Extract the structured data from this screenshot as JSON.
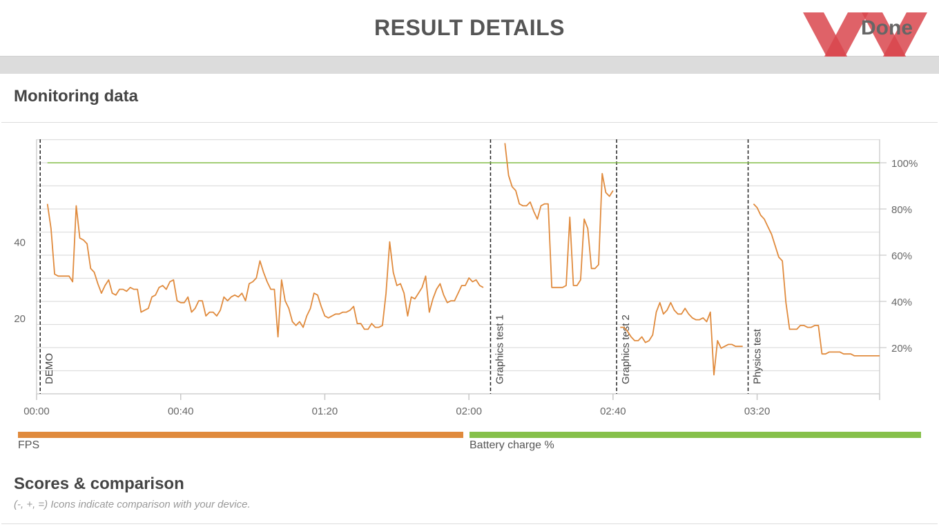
{
  "header": {
    "title": "RESULT DETAILS",
    "done_label": "Done"
  },
  "monitoring": {
    "title": "Monitoring data"
  },
  "legend": [
    {
      "label": "FPS",
      "color": "#e08a3c"
    },
    {
      "label": "Battery charge %",
      "color": "#86c04a"
    }
  ],
  "scores": {
    "title": "Scores & comparison",
    "note": "(-, +, =) Icons indicate comparison with your device."
  },
  "chart_data": {
    "type": "line",
    "x_ticks": [
      "00:00",
      "00:40",
      "01:20",
      "02:00",
      "02:40",
      "03:20"
    ],
    "x_tick_values": [
      0,
      40,
      80,
      120,
      160,
      200
    ],
    "xlim": [
      0,
      234
    ],
    "y_left_ticks": [
      "20",
      "40"
    ],
    "y_left_tick_values": [
      20,
      40
    ],
    "ylim_left": [
      0,
      67
    ],
    "y_right_ticks": [
      "20%",
      "40%",
      "60%",
      "80%",
      "100%"
    ],
    "y_right_tick_values": [
      20,
      40,
      60,
      80,
      100
    ],
    "ylim_right": [
      0,
      100
    ],
    "grid": true,
    "markers": [
      {
        "label": "DEMO",
        "x": 1
      },
      {
        "label": "Graphics test 1",
        "x": 126
      },
      {
        "label": "Graphics test 2",
        "x": 161
      },
      {
        "label": "Physics test",
        "x": 197.5
      }
    ],
    "series": [
      {
        "name": "Battery charge %",
        "axis": "right",
        "color": "#86c04a",
        "x": [
          3,
          234
        ],
        "y": [
          100,
          100
        ]
      },
      {
        "name": "FPS",
        "axis": "left",
        "color": "#e08a3c",
        "segments": [
          {
            "x": [
              3,
              4,
              5,
              6,
              7,
              8,
              9,
              10,
              11,
              12,
              13,
              14,
              15,
              16,
              17,
              18,
              19,
              20,
              21,
              22,
              23,
              24,
              25,
              26,
              27,
              28,
              29,
              30,
              31,
              32,
              33,
              34,
              35,
              36,
              37,
              38,
              39,
              40,
              41,
              42,
              43,
              44,
              45,
              46,
              47,
              48,
              49,
              50,
              51,
              52,
              53,
              54,
              55,
              56,
              57,
              58,
              59,
              60,
              61,
              62,
              63,
              64,
              65,
              66,
              67,
              68,
              69,
              70,
              71,
              72,
              73,
              74,
              75,
              76,
              77,
              78,
              79,
              80,
              81,
              82,
              83,
              84,
              85,
              86,
              87,
              88,
              89,
              90,
              91,
              92,
              93,
              94,
              95,
              96,
              97,
              98,
              99,
              100,
              101,
              102,
              103,
              104,
              105,
              106,
              107,
              108,
              109,
              110,
              111,
              112,
              113,
              114,
              115,
              116,
              117,
              118,
              119,
              120,
              121,
              122,
              123,
              124
            ],
            "y": [
              50,
              43.5,
              31.5,
              31,
              31,
              31,
              31,
              29.5,
              49.5,
              41,
              40.5,
              39.5,
              33,
              32,
              29,
              26.5,
              28.5,
              30,
              26.5,
              26,
              27.5,
              27.5,
              27,
              28,
              27.5,
              27.5,
              21.5,
              22,
              22.5,
              25.5,
              26,
              28,
              28.5,
              27.5,
              29.5,
              30,
              24.5,
              24,
              24,
              25.5,
              21.5,
              22.5,
              24.5,
              24.5,
              20.5,
              21.5,
              21.5,
              20.5,
              22,
              25.5,
              24.5,
              25.5,
              26,
              25.5,
              26.5,
              24.5,
              29,
              29.5,
              30.5,
              35,
              32,
              29.5,
              27.5,
              27.5,
              15,
              30,
              24.5,
              22.5,
              19,
              18,
              19,
              17.5,
              20.5,
              22.5,
              26.5,
              26,
              23,
              20.5,
              20,
              20.5,
              21,
              21,
              21.5,
              21.5,
              22,
              23,
              18.5,
              18.5,
              17,
              17,
              18.5,
              17.5,
              17.5,
              18,
              26.5,
              40,
              32,
              28.5,
              29,
              26.5,
              20.5,
              25.5,
              25,
              26.5,
              28,
              31,
              21.5,
              25,
              27.5,
              29,
              26,
              24,
              24.5,
              24.5,
              26.5,
              28.5,
              28.5,
              30.5,
              29.5,
              30,
              28.5,
              28
            ]
          },
          {
            "x": [
              130,
              131,
              132,
              133,
              134,
              135,
              136,
              137,
              138,
              139,
              140,
              141,
              142,
              143,
              144,
              145,
              146,
              147,
              148,
              149,
              150,
              151,
              152,
              153,
              154,
              155,
              156,
              157,
              158,
              159,
              160
            ],
            "y": [
              66,
              57.5,
              54.5,
              53.5,
              50,
              49.5,
              49.5,
              50.5,
              48,
              46,
              49.5,
              50,
              50,
              28,
              28,
              28,
              28,
              28.5,
              46.5,
              28.5,
              28.5,
              30,
              46,
              43.5,
              33,
              33,
              34,
              58,
              53,
              52,
              53.5
            ]
          },
          {
            "x": [
              162,
              163,
              164,
              165,
              166,
              167,
              168,
              169,
              170,
              171,
              172,
              173,
              174,
              175,
              176,
              177,
              178,
              179,
              180,
              181,
              182,
              183,
              184,
              185,
              186,
              187,
              188,
              189,
              190,
              191,
              192,
              193,
              194,
              195,
              196
            ],
            "y": [
              17.5,
              17.5,
              16.5,
              15,
              14,
              14,
              15,
              13.5,
              14,
              15.5,
              21.5,
              24,
              21,
              22,
              24,
              22,
              21,
              21,
              22.5,
              21,
              20,
              19.5,
              19.5,
              20,
              19,
              21.5,
              5,
              14,
              12,
              12.5,
              13,
              13,
              12.5,
              12.5,
              12.5
            ]
          },
          {
            "x": [
              199,
              200,
              201,
              202,
              203,
              204,
              205,
              206,
              207,
              208,
              209,
              210,
              211,
              212,
              213,
              214,
              215,
              216,
              217,
              218,
              219,
              220,
              221,
              222,
              223,
              224,
              225,
              226,
              227,
              228,
              229,
              230,
              231,
              232,
              233,
              234
            ],
            "y": [
              50,
              49,
              47,
              46,
              44,
              42,
              39,
              36,
              35,
              24,
              17,
              17,
              17,
              18,
              18,
              17.5,
              17.5,
              18,
              18,
              10.5,
              10.5,
              11,
              11,
              11,
              11,
              10.5,
              10.5,
              10.5,
              10,
              10,
              10,
              10,
              10,
              10,
              10,
              10
            ]
          }
        ]
      }
    ]
  }
}
